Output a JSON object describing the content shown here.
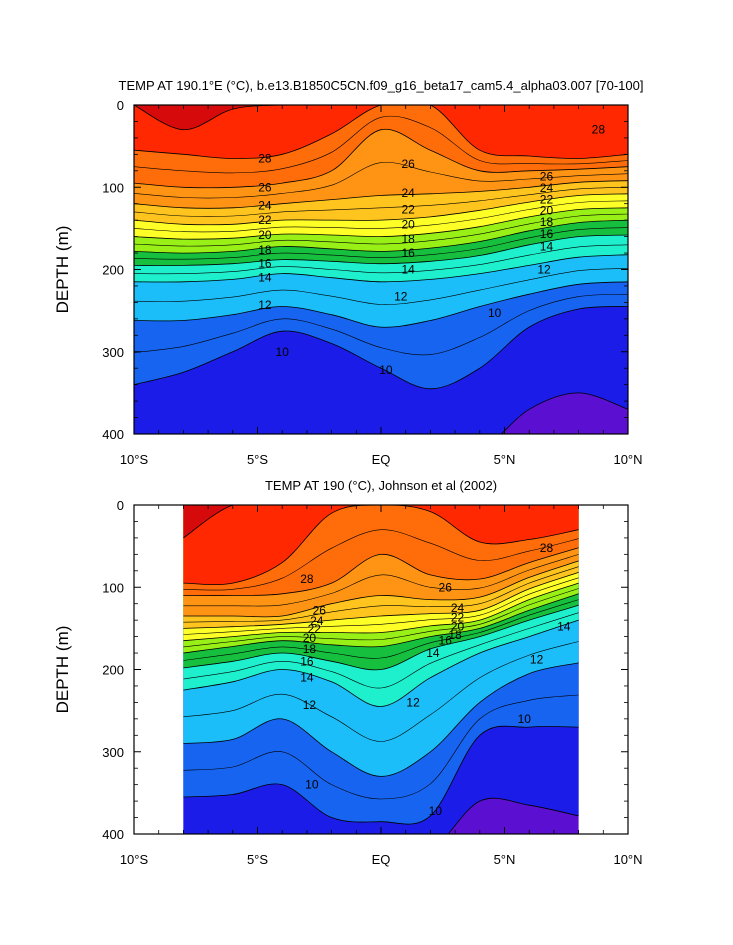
{
  "chart_data": [
    {
      "type": "contour",
      "title": "TEMP AT 190.1°E (°C), b.e13.B1850C5CN.f09_g16_beta17_cam5.4_alpha03.007 [70-100]",
      "xlabel": "",
      "ylabel": "DEPTH (m)",
      "xlim": [
        -10,
        10
      ],
      "ylim": [
        400,
        0
      ],
      "x_ticks": [
        -10,
        -5,
        0,
        5,
        10
      ],
      "x_tick_labels": [
        "10°S",
        "5°S",
        "EQ",
        "5°N",
        "10°N"
      ],
      "y_ticks": [
        0,
        100,
        200,
        300,
        400
      ],
      "y_tick_labels": [
        "0",
        "100",
        "200",
        "300",
        "400"
      ],
      "data_extent": [
        -10,
        10
      ],
      "x": [
        -10,
        -8,
        -6,
        -4,
        -2,
        0,
        2,
        4,
        6,
        8,
        10
      ],
      "isotherm_depths": [
        {
          "level": 9,
          "values": [
            420,
            420,
            420,
            420,
            420,
            420,
            420,
            420,
            370,
            350,
            370
          ]
        },
        {
          "level": 10,
          "values": [
            340,
            325,
            300,
            275,
            290,
            320,
            345,
            320,
            270,
            248,
            245
          ]
        },
        {
          "level": 12,
          "values": [
            262,
            262,
            255,
            245,
            255,
            270,
            262,
            245,
            230,
            218,
            215
          ]
        },
        {
          "level": 14,
          "values": [
            215,
            215,
            212,
            205,
            210,
            215,
            212,
            205,
            195,
            185,
            182
          ]
        },
        {
          "level": 16,
          "values": [
            195,
            195,
            193,
            188,
            190,
            193,
            190,
            183,
            170,
            160,
            158
          ]
        },
        {
          "level": 18,
          "values": [
            178,
            180,
            178,
            172,
            175,
            178,
            174,
            166,
            153,
            143,
            140
          ]
        },
        {
          "level": 20,
          "values": [
            160,
            163,
            162,
            157,
            158,
            160,
            156,
            148,
            136,
            127,
            125
          ]
        },
        {
          "level": 22,
          "values": [
            140,
            145,
            145,
            140,
            140,
            140,
            136,
            128,
            118,
            110,
            108
          ]
        },
        {
          "level": 24,
          "values": [
            120,
            125,
            125,
            120,
            115,
            110,
            108,
            105,
            100,
            94,
            92
          ]
        },
        {
          "level": 26,
          "values": [
            95,
            100,
            100,
            95,
            80,
            30,
            55,
            80,
            80,
            78,
            75
          ]
        },
        {
          "level": 28,
          "values": [
            55,
            60,
            65,
            60,
            35,
            0,
            0,
            55,
            62,
            65,
            60
          ]
        },
        {
          "level": 29,
          "values": [
            0,
            30,
            5,
            0,
            0,
            0,
            0,
            0,
            0,
            0,
            0
          ]
        }
      ],
      "contour_labels": [
        {
          "text": "28",
          "x": -4.7,
          "y": 65
        },
        {
          "text": "28",
          "x": 8.8,
          "y": 30
        },
        {
          "text": "26",
          "x": -4.7,
          "y": 100
        },
        {
          "text": "26",
          "x": 1.1,
          "y": 72
        },
        {
          "text": "26",
          "x": 6.7,
          "y": 87
        },
        {
          "text": "24",
          "x": -4.7,
          "y": 122
        },
        {
          "text": "24",
          "x": 1.1,
          "y": 107
        },
        {
          "text": "24",
          "x": 6.7,
          "y": 101
        },
        {
          "text": "22",
          "x": -4.7,
          "y": 140
        },
        {
          "text": "22",
          "x": 1.1,
          "y": 127
        },
        {
          "text": "22",
          "x": 6.7,
          "y": 115
        },
        {
          "text": "20",
          "x": -4.7,
          "y": 158
        },
        {
          "text": "20",
          "x": 1.1,
          "y": 145
        },
        {
          "text": "20",
          "x": 6.7,
          "y": 128
        },
        {
          "text": "18",
          "x": -4.7,
          "y": 176
        },
        {
          "text": "18",
          "x": 1.1,
          "y": 163
        },
        {
          "text": "18",
          "x": 6.7,
          "y": 142
        },
        {
          "text": "16",
          "x": -4.7,
          "y": 193
        },
        {
          "text": "16",
          "x": 1.1,
          "y": 180
        },
        {
          "text": "16",
          "x": 6.7,
          "y": 157
        },
        {
          "text": "14",
          "x": -4.7,
          "y": 210
        },
        {
          "text": "14",
          "x": 1.1,
          "y": 200
        },
        {
          "text": "14",
          "x": 6.7,
          "y": 172
        },
        {
          "text": "12",
          "x": -4.7,
          "y": 243
        },
        {
          "text": "12",
          "x": 0.8,
          "y": 233
        },
        {
          "text": "12",
          "x": 6.6,
          "y": 200
        },
        {
          "text": "10",
          "x": -4.0,
          "y": 300
        },
        {
          "text": "10",
          "x": 0.2,
          "y": 322
        },
        {
          "text": "10",
          "x": 4.6,
          "y": 253
        }
      ]
    },
    {
      "type": "contour",
      "title": "TEMP AT 190 (°C), Johnson et al (2002)",
      "xlabel": "",
      "ylabel": "DEPTH (m)",
      "xlim": [
        -10,
        10
      ],
      "ylim": [
        400,
        0
      ],
      "x_ticks": [
        -10,
        -5,
        0,
        5,
        10
      ],
      "x_tick_labels": [
        "10°S",
        "5°S",
        "EQ",
        "5°N",
        "10°N"
      ],
      "y_ticks": [
        0,
        100,
        200,
        300,
        400
      ],
      "y_tick_labels": [
        "0",
        "100",
        "200",
        "300",
        "400"
      ],
      "data_extent": [
        -8,
        8
      ],
      "x": [
        -8,
        -6,
        -4,
        -2,
        0,
        2,
        4,
        6,
        8
      ],
      "isotherm_depths": [
        {
          "level": 9,
          "values": [
            420,
            420,
            420,
            420,
            420,
            420,
            360,
            365,
            378
          ]
        },
        {
          "level": 10,
          "values": [
            355,
            352,
            340,
            380,
            385,
            378,
            280,
            270,
            270
          ]
        },
        {
          "level": 12,
          "values": [
            290,
            285,
            260,
            300,
            330,
            300,
            240,
            205,
            192
          ]
        },
        {
          "level": 14,
          "values": [
            225,
            215,
            200,
            215,
            245,
            210,
            180,
            160,
            140
          ]
        },
        {
          "level": 16,
          "values": [
            198,
            190,
            180,
            190,
            200,
            175,
            160,
            140,
            122
          ]
        },
        {
          "level": 18,
          "values": [
            180,
            172,
            165,
            170,
            172,
            160,
            150,
            128,
            108
          ]
        },
        {
          "level": 20,
          "values": [
            165,
            160,
            155,
            155,
            155,
            147,
            140,
            115,
            95
          ]
        },
        {
          "level": 22,
          "values": [
            150,
            148,
            145,
            140,
            135,
            132,
            128,
            102,
            82
          ]
        },
        {
          "level": 24,
          "values": [
            135,
            135,
            135,
            120,
            110,
            115,
            112,
            88,
            68
          ]
        },
        {
          "level": 26,
          "values": [
            110,
            110,
            108,
            95,
            60,
            85,
            90,
            70,
            52
          ]
        },
        {
          "level": 28,
          "values": [
            95,
            95,
            70,
            10,
            0,
            8,
            45,
            42,
            30
          ]
        },
        {
          "level": 29,
          "values": [
            40,
            0,
            0,
            0,
            0,
            0,
            0,
            0,
            0
          ]
        }
      ],
      "contour_labels": [
        {
          "text": "28",
          "x": -3.0,
          "y": 90
        },
        {
          "text": "28",
          "x": 6.7,
          "y": 52
        },
        {
          "text": "26",
          "x": -2.5,
          "y": 128
        },
        {
          "text": "26",
          "x": 2.6,
          "y": 100
        },
        {
          "text": "24",
          "x": -2.6,
          "y": 141
        },
        {
          "text": "24",
          "x": 3.1,
          "y": 125
        },
        {
          "text": "22",
          "x": -2.7,
          "y": 151
        },
        {
          "text": "22",
          "x": 3.1,
          "y": 137
        },
        {
          "text": "20",
          "x": -2.9,
          "y": 162
        },
        {
          "text": "20",
          "x": 3.1,
          "y": 148
        },
        {
          "text": "18",
          "x": -2.9,
          "y": 175
        },
        {
          "text": "18",
          "x": 3.0,
          "y": 158
        },
        {
          "text": "16",
          "x": 2.6,
          "y": 165
        },
        {
          "text": "16",
          "x": -3.0,
          "y": 190
        },
        {
          "text": "14",
          "x": -3.0,
          "y": 210
        },
        {
          "text": "14",
          "x": 2.1,
          "y": 180
        },
        {
          "text": "14",
          "x": 7.4,
          "y": 148
        },
        {
          "text": "12",
          "x": -2.9,
          "y": 243
        },
        {
          "text": "12",
          "x": 1.3,
          "y": 240
        },
        {
          "text": "12",
          "x": 6.3,
          "y": 188
        },
        {
          "text": "10",
          "x": -2.8,
          "y": 340
        },
        {
          "text": "10",
          "x": 2.2,
          "y": 372
        },
        {
          "text": "10",
          "x": 5.8,
          "y": 260
        }
      ]
    }
  ]
}
